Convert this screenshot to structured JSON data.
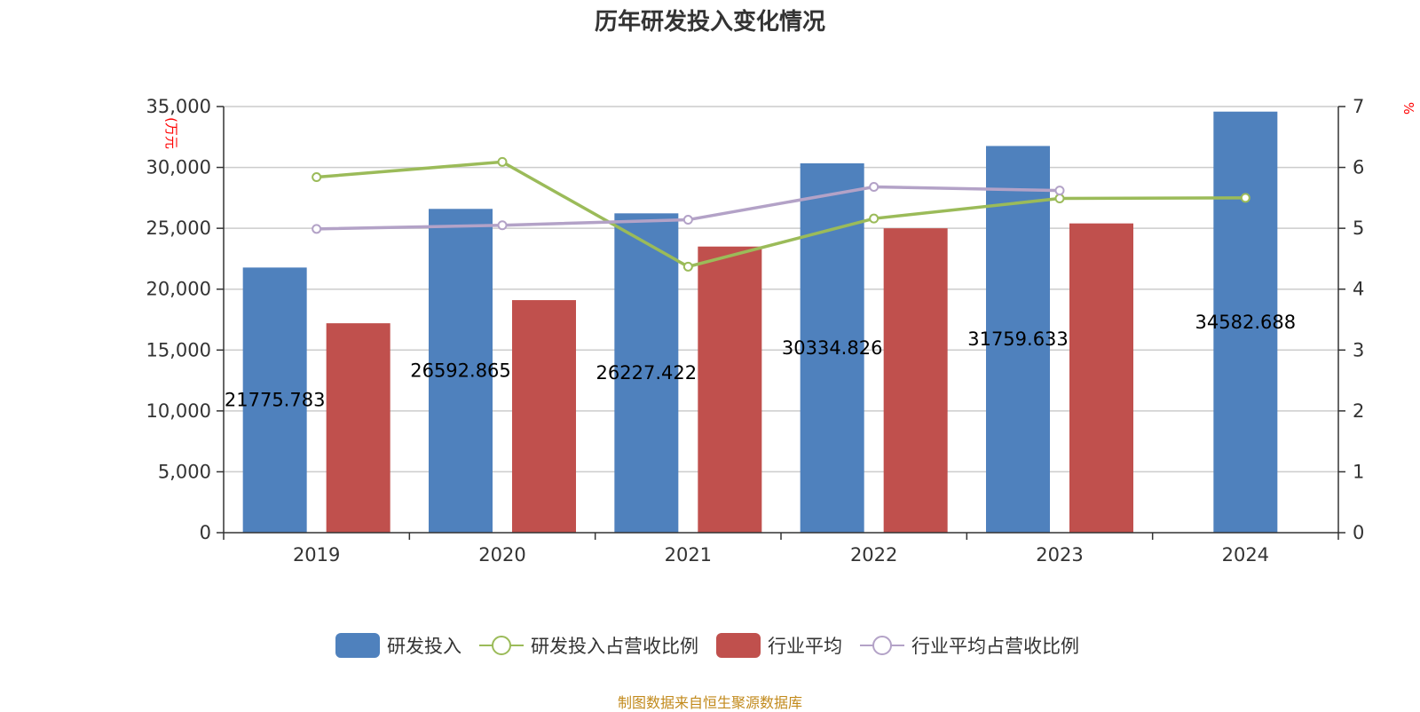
{
  "chart_data": {
    "type": "bar",
    "title": "历年研发投入变化情况",
    "categories": [
      "2019",
      "2020",
      "2021",
      "2022",
      "2023",
      "2024"
    ],
    "y_left": {
      "unit": "(万元",
      "ylim": [
        0,
        35000
      ],
      "ticks": [
        "0",
        "5,000",
        "10,000",
        "15,000",
        "20,000",
        "25,000",
        "30,000",
        "35,000"
      ]
    },
    "y_right": {
      "unit": "%",
      "ylim": [
        0,
        7
      ],
      "ticks": [
        "0",
        "1",
        "2",
        "3",
        "4",
        "5",
        "6",
        "7"
      ]
    },
    "grid": true,
    "legend_position": "bottom",
    "series": [
      {
        "name": "研发投入",
        "type": "bar",
        "axis": "left",
        "color": "#4f81bd",
        "values": [
          21775.783,
          26592.865,
          26227.422,
          30334.826,
          31759.633,
          34582.688
        ],
        "labels": [
          "21775.783",
          "26592.865",
          "26227.422",
          "30334.826",
          "31759.633",
          "34582.688"
        ]
      },
      {
        "name": "研发投入占营收比例",
        "type": "line",
        "axis": "right",
        "color": "#9bbb59",
        "values": [
          5.84,
          6.09,
          4.37,
          5.16,
          5.49,
          5.5
        ]
      },
      {
        "name": "行业平均",
        "type": "bar",
        "axis": "left",
        "color": "#c0504d",
        "values": [
          17200,
          19100,
          23500,
          25000,
          25400,
          null
        ]
      },
      {
        "name": "行业平均占营收比例",
        "type": "line",
        "axis": "right",
        "color": "#b3a2c7",
        "values": [
          4.99,
          5.05,
          5.14,
          5.68,
          5.62,
          null
        ]
      }
    ]
  },
  "source": "制图数据来自恒生聚源数据库"
}
